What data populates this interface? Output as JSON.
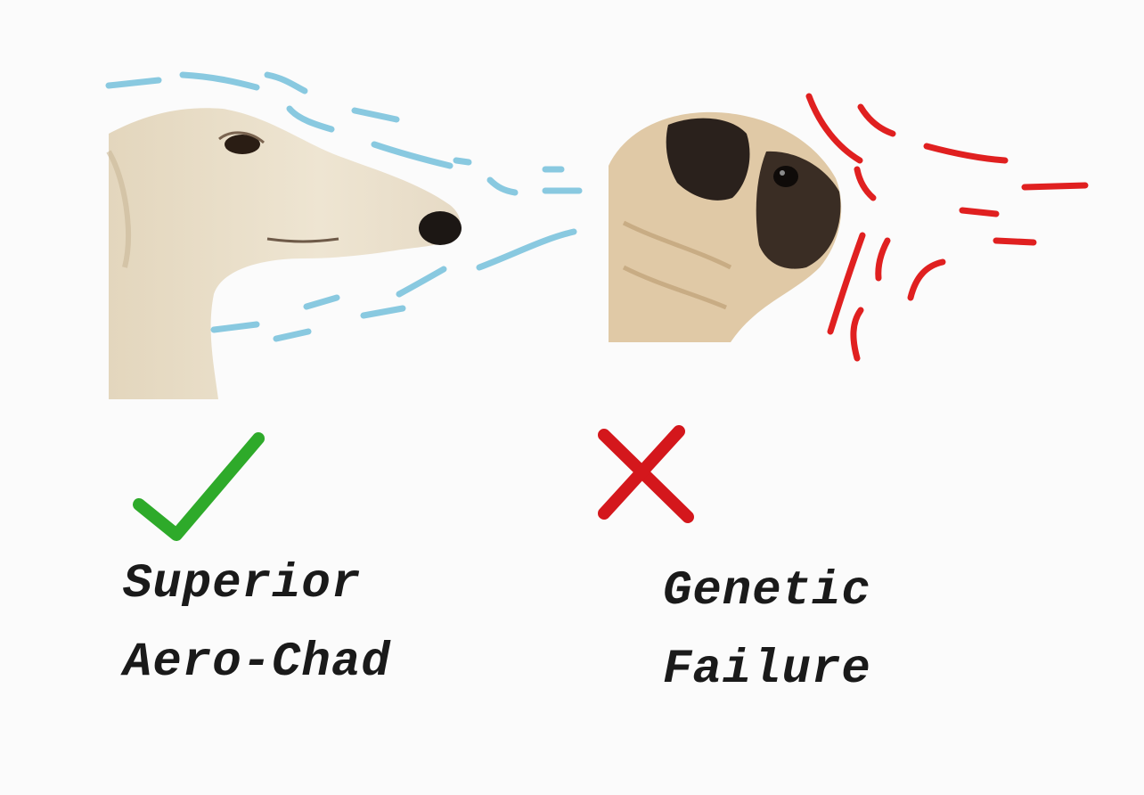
{
  "panels": {
    "left": {
      "subject_icon": "borzoi-head-profile",
      "airflow_color": "#89c9e0",
      "verdict_icon": "check-icon",
      "verdict_color": "#2eaa2a",
      "caption_line1": "Superior",
      "caption_line2": "Aero-Chad"
    },
    "right": {
      "subject_icon": "pug-head-profile",
      "airflow_color": "#e02020",
      "verdict_icon": "cross-icon",
      "verdict_color": "#d4171c",
      "caption_line1": "Genetic",
      "caption_line2": "Failure"
    }
  }
}
